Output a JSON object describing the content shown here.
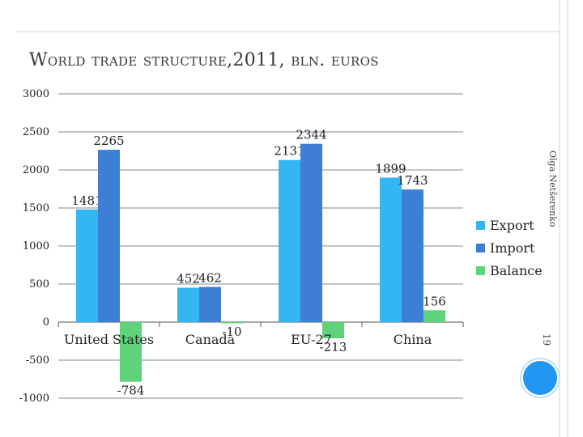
{
  "slide": {
    "title": "World trade structure,2011,  bln. euros",
    "author": "Olga Netšerenko",
    "page_number": "19",
    "frame_color": "#e2ebf1",
    "circle_color": "#2196f3"
  },
  "chart_data": {
    "type": "bar",
    "title": "",
    "xlabel": "",
    "ylabel": "",
    "categories": [
      "United States",
      "Canada",
      "EU-27",
      "China"
    ],
    "series": [
      {
        "name": "Export",
        "color": "#33b6f2",
        "values": [
          1481,
          452,
          2131,
          1899
        ],
        "labels": [
          "1481",
          "452",
          "2131",
          "1899"
        ]
      },
      {
        "name": "Import",
        "color": "#3d7fd6",
        "values": [
          2265,
          462,
          2344,
          1743
        ],
        "labels": [
          "2265",
          "462",
          "2344",
          "1743"
        ]
      },
      {
        "name": "Balance",
        "color": "#5ed37a",
        "values": [
          -784,
          -10,
          -213,
          156
        ],
        "labels": [
          "-784",
          "-10",
          "-213",
          "156"
        ]
      }
    ],
    "ylim": [
      -1000,
      3000
    ],
    "yticks": [
      -1000,
      -500,
      0,
      500,
      1000,
      1500,
      2000,
      2500,
      3000
    ],
    "ytick_labels": [
      "-1000",
      "-500",
      "0",
      "500",
      "1000",
      "1500",
      "2000",
      "2500",
      "3000"
    ],
    "grid": true,
    "legend_position": "right"
  }
}
